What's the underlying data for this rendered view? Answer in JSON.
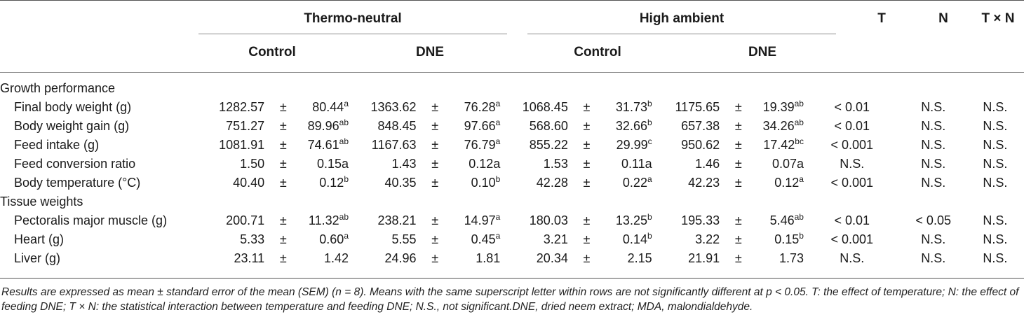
{
  "header": {
    "group1": "Thermo-neutral",
    "group2": "High ambient",
    "sub": [
      "Control",
      "DNE",
      "Control",
      "DNE"
    ],
    "stats": [
      "T",
      "N",
      "T × N"
    ]
  },
  "pm": "±",
  "sections": [
    {
      "title": "Growth performance",
      "rows": [
        {
          "label": "Final body weight (g)",
          "cells": [
            [
              "1282.57",
              "80.44",
              "a"
            ],
            [
              "1363.62",
              "76.28",
              "a"
            ],
            [
              "1068.45",
              "31.73",
              "b"
            ],
            [
              "1175.65",
              "19.39",
              "ab"
            ]
          ],
          "stats": [
            "< 0.01",
            "N.S.",
            "N.S."
          ]
        },
        {
          "label": "Body weight gain (g)",
          "cells": [
            [
              "751.27",
              "89.96",
              "ab"
            ],
            [
              "848.45",
              "97.66",
              "a"
            ],
            [
              "568.60",
              "32.66",
              "b"
            ],
            [
              "657.38",
              "34.26",
              "ab"
            ]
          ],
          "stats": [
            "< 0.01",
            "N.S.",
            "N.S."
          ]
        },
        {
          "label": "Feed intake (g)",
          "cells": [
            [
              "1081.91",
              "74.61",
              "ab"
            ],
            [
              "1167.63",
              "76.79",
              "a"
            ],
            [
              "855.22",
              "29.99",
              "c"
            ],
            [
              "950.62",
              "17.42",
              "bc"
            ]
          ],
          "stats": [
            "< 0.001",
            "N.S.",
            "N.S."
          ]
        },
        {
          "label": "Feed conversion ratio",
          "cells": [
            [
              "1.50",
              "0.15a",
              ""
            ],
            [
              "1.43",
              "0.12a",
              ""
            ],
            [
              "1.53",
              "0.11a",
              ""
            ],
            [
              "1.46",
              "0.07a",
              ""
            ]
          ],
          "stats": [
            "N.S.",
            "N.S.",
            "N.S."
          ]
        },
        {
          "label": "Body temperature (°C)",
          "cells": [
            [
              "40.40",
              "0.12",
              "b"
            ],
            [
              "40.35",
              "0.10",
              "b"
            ],
            [
              "42.28",
              "0.22",
              "a"
            ],
            [
              "42.23",
              "0.12",
              "a"
            ]
          ],
          "stats": [
            "< 0.001",
            "N.S.",
            "N.S."
          ]
        }
      ]
    },
    {
      "title": "Tissue weights",
      "rows": [
        {
          "label": "Pectoralis major muscle (g)",
          "cells": [
            [
              "200.71",
              "11.32",
              "ab"
            ],
            [
              "238.21",
              "14.97",
              "a"
            ],
            [
              "180.03",
              "13.25",
              "b"
            ],
            [
              "195.33",
              "5.46",
              "ab"
            ]
          ],
          "stats": [
            "< 0.01",
            "< 0.05",
            "N.S."
          ]
        },
        {
          "label": "Heart (g)",
          "cells": [
            [
              "5.33",
              "0.60",
              "a"
            ],
            [
              "5.55",
              "0.45",
              "a"
            ],
            [
              "3.21",
              "0.14",
              "b"
            ],
            [
              "3.22",
              "0.15",
              "b"
            ]
          ],
          "stats": [
            "< 0.001",
            "N.S.",
            "N.S."
          ]
        },
        {
          "label": "Liver (g)",
          "cells": [
            [
              "23.11",
              "1.42",
              ""
            ],
            [
              "24.96",
              "1.81",
              ""
            ],
            [
              "20.34",
              "2.15",
              ""
            ],
            [
              "21.91",
              "1.73",
              ""
            ]
          ],
          "stats": [
            "N.S.",
            "N.S.",
            "N.S."
          ]
        }
      ]
    }
  ],
  "footnote": "Results are expressed as mean ± standard error of the mean (SEM) (n = 8). Means with the same superscript letter within rows are not significantly different at p < 0.05. T: the effect of temperature; N: the effect of feeding DNE; T × N: the statistical interaction between temperature and feeding DNE; N.S., not significant.DNE, dried neem extract; MDA, malondialdehyde."
}
